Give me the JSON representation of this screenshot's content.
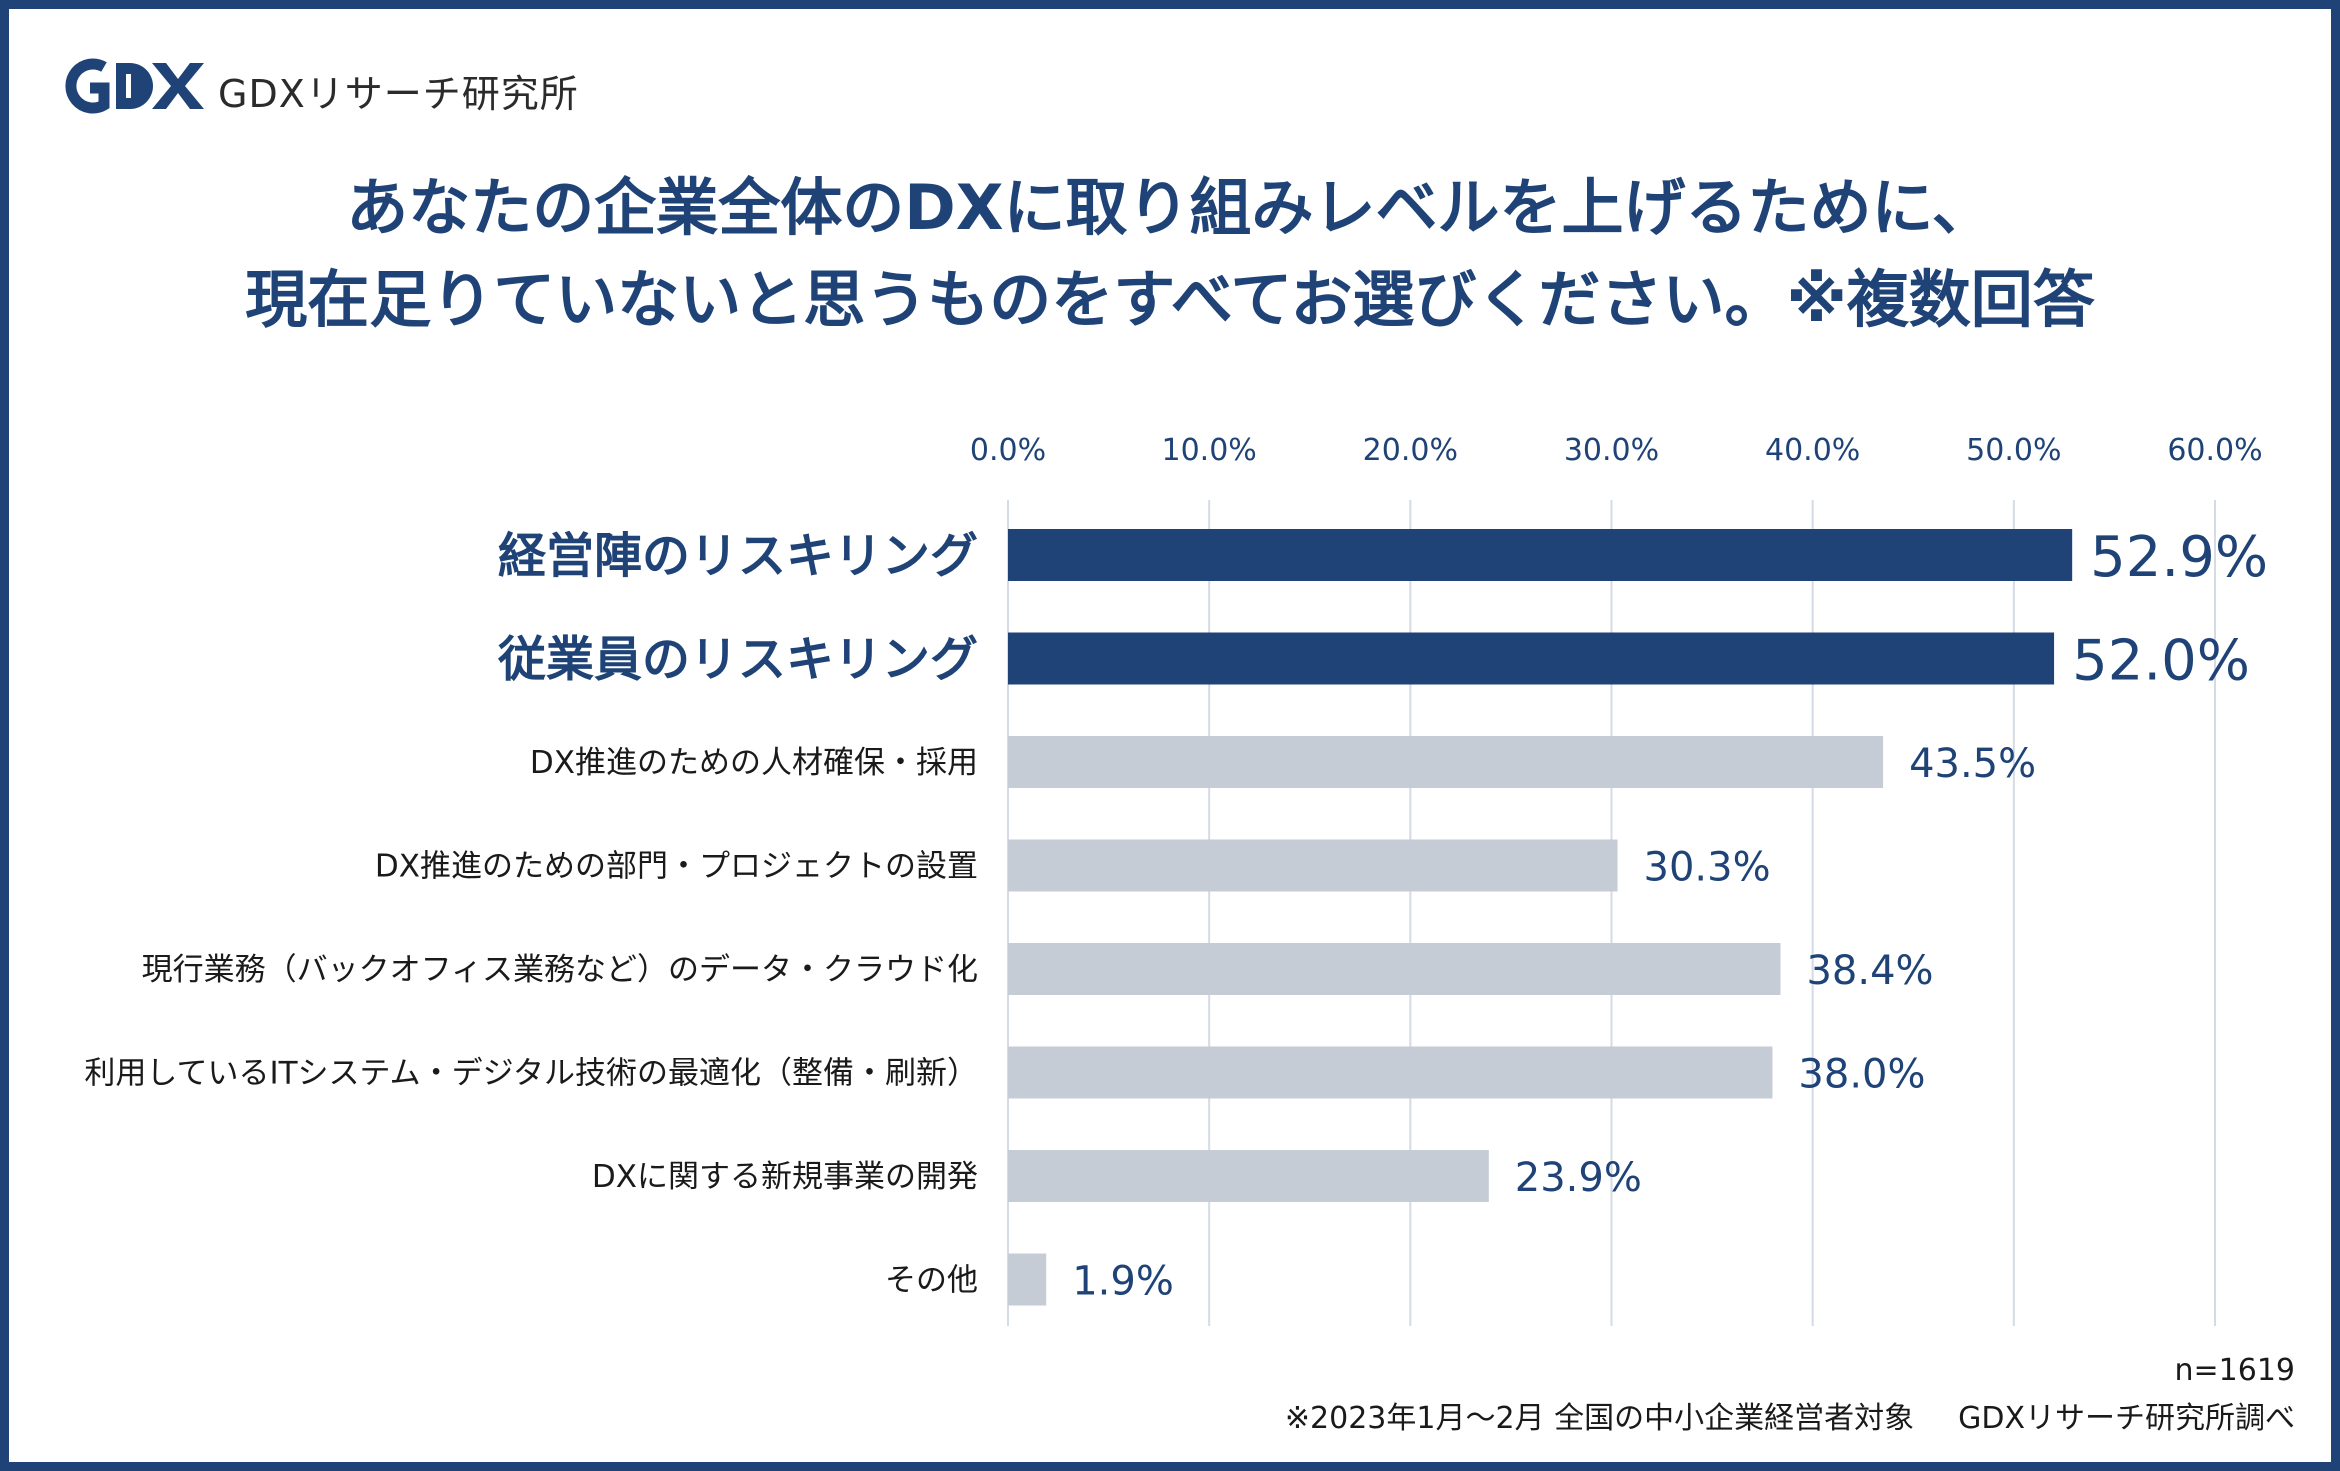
{
  "brand": {
    "logo_text": "GDXリサーチ研究所",
    "logo_mark": "GDX",
    "color": "#1f4377"
  },
  "title": {
    "line1": "あなたの企業全体のDXに取り組みレベルを上げるために、",
    "line2": "現在足りていないと思うものをすべてお選びください。※複数回答"
  },
  "chart_data": {
    "type": "bar",
    "orientation": "horizontal",
    "categories": [
      "経営陣のリスキリング",
      "従業員のリスキリング",
      "DX推進のための人材確保・採用",
      "DX推進のための部門・プロジェクトの設置",
      "現行業務（バックオフィス業務など）のデータ・クラウド化",
      "利用しているITシステム・デジタル技術の最適化（整備・刷新）",
      "DXに関する新規事業の開発",
      "その他"
    ],
    "values": [
      52.9,
      52.0,
      43.5,
      30.3,
      38.4,
      38.0,
      23.9,
      1.9
    ],
    "value_labels": [
      "52.9%",
      "52.0%",
      "43.5%",
      "30.3%",
      "38.4%",
      "38.0%",
      "23.9%",
      "1.9%"
    ],
    "highlighted": [
      true,
      true,
      false,
      false,
      false,
      false,
      false,
      false
    ],
    "xlim": [
      0,
      60
    ],
    "xticks": [
      "0.0%",
      "10.0%",
      "20.0%",
      "30.0%",
      "40.0%",
      "50.0%",
      "60.0%"
    ],
    "tick_values": [
      0,
      10,
      20,
      30,
      40,
      50,
      60
    ],
    "axis_position": "top",
    "grid": true,
    "colors": {
      "highlight": "#1f4377",
      "normal": "#c5ccd6",
      "label_highlight": "#1f4377",
      "label_normal": "#1a1a1a",
      "value_text": "#1f4377",
      "grid": "#d4dbe6",
      "tick_text": "#1f4377"
    }
  },
  "footer": {
    "sample": "n=1619",
    "survey": "※2023年1月〜2月 全国の中小企業経営者対象",
    "source": "GDXリサーチ研究所調べ"
  }
}
